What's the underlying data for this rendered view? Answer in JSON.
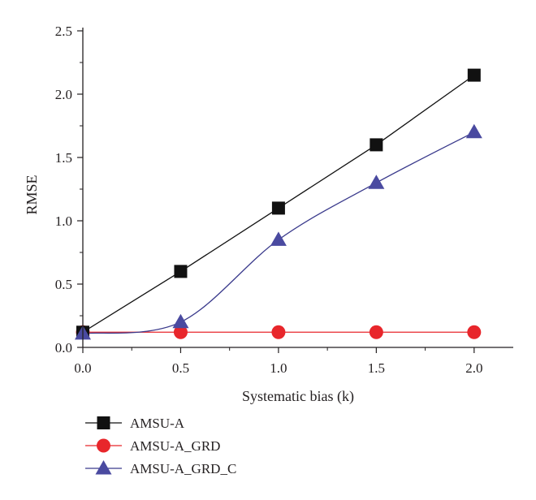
{
  "chart_data": {
    "type": "line",
    "title": "",
    "xlabel": "Systematic bias (k)",
    "ylabel": "RMSE",
    "xlim": [
      0.0,
      2.2
    ],
    "ylim": [
      0.0,
      2.5
    ],
    "x_ticks": [
      "0.0",
      "0.5",
      "1.0",
      "1.5",
      "2.0"
    ],
    "y_ticks": [
      "0.0",
      "0.5",
      "1.0",
      "1.5",
      "2.0",
      "2.5"
    ],
    "grid": false,
    "legend_position": "bottom-left, below plot",
    "x": [
      0.0,
      0.5,
      1.0,
      1.5,
      2.0
    ],
    "series": [
      {
        "name": "AMSU-A",
        "values": [
          0.12,
          0.6,
          1.1,
          1.6,
          2.15
        ],
        "marker": "square",
        "color": "#111111",
        "line_color": "#111111"
      },
      {
        "name": "AMSU-A_GRD",
        "values": [
          0.12,
          0.12,
          0.12,
          0.12,
          0.12
        ],
        "marker": "circle",
        "color": "#e8262b",
        "line_color": "#e8262b"
      },
      {
        "name": "AMSU-A_GRD_C",
        "values": [
          0.11,
          0.2,
          0.85,
          1.3,
          1.7
        ],
        "marker": "triangle",
        "color": "#4a4aa0",
        "line_color": "#3a3a8c"
      }
    ]
  }
}
